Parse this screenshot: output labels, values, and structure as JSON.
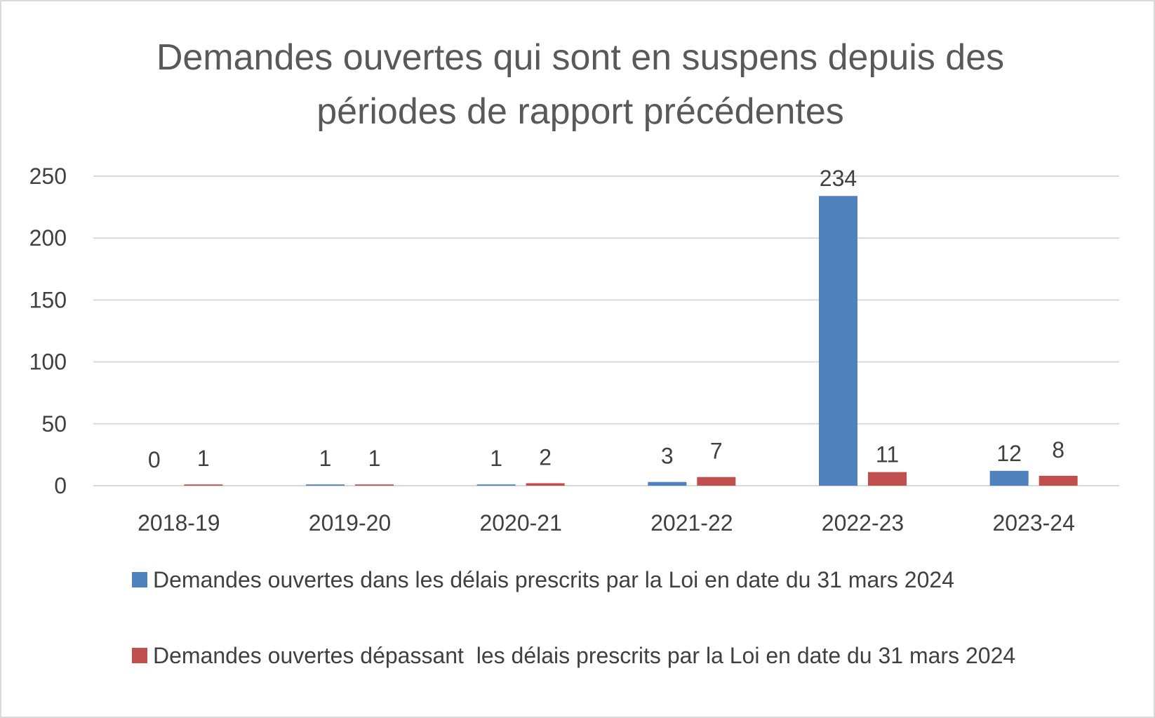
{
  "chart_data": {
    "type": "bar",
    "title": "Demandes ouvertes qui sont en suspens depuis des périodes de rapport précédentes",
    "categories": [
      "2018-19",
      "2019-20",
      "2020-21",
      "2021-22",
      "2022-23",
      "2023-24"
    ],
    "series": [
      {
        "name": "Demandes ouvertes dans les délais prescrits par la Loi en date du 31 mars 2024",
        "color": "#4f81bd",
        "values": [
          0,
          1,
          1,
          3,
          234,
          12
        ]
      },
      {
        "name": "Demandes ouvertes dépassant  les délais prescrits par la Loi en date du 31 mars 2024",
        "color": "#c0504d",
        "values": [
          1,
          1,
          2,
          7,
          11,
          8
        ]
      }
    ],
    "ylim": [
      0,
      250
    ],
    "yticks": [
      0,
      50,
      100,
      150,
      200,
      250
    ],
    "grid": true,
    "legend": "bottom"
  }
}
